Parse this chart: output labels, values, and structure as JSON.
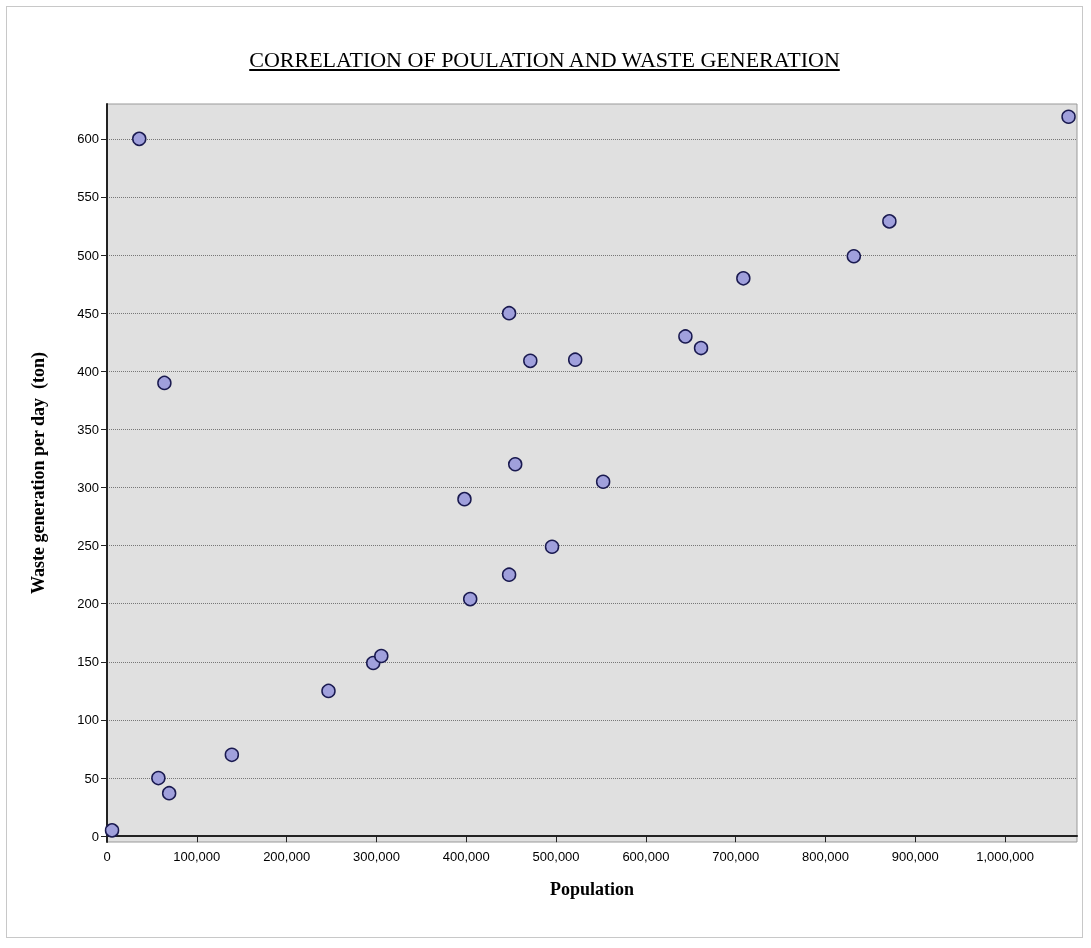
{
  "chart_data": {
    "type": "scatter",
    "title": "CORRELATION OF POULATION AND WASTE GENERATION",
    "xlabel": "Population",
    "ylabel": "Waste generation per day  (ton)",
    "x": [
      5600,
      35900,
      57200,
      63900,
      69200,
      139000,
      246600,
      296400,
      305400,
      398000,
      404400,
      447700,
      447700,
      454500,
      471300,
      495500,
      521300,
      552400,
      644000,
      661400,
      708500,
      831500,
      871100,
      1070600
    ],
    "values": [
      5,
      600,
      50,
      390,
      37,
      70,
      125,
      149,
      155,
      290,
      204,
      225,
      450,
      320,
      409,
      249,
      410,
      305,
      430,
      420,
      480,
      499,
      529,
      619
    ],
    "color": "#a0a0dc",
    "marker": "circle",
    "grid": "y",
    "xlim": [
      0,
      1080000
    ],
    "xticks": [
      0,
      {
        "value": 100000,
        "label": "100,000"
      },
      {
        "value": 200000,
        "label": "200,000"
      },
      {
        "value": 300000,
        "label": "300,000"
      },
      {
        "value": 400000,
        "label": "400,000"
      },
      {
        "value": 500000,
        "label": "500,000"
      },
      {
        "value": 600000,
        "label": "600,000"
      },
      {
        "value": 700000,
        "label": "700,000"
      },
      {
        "value": 800000,
        "label": "800,000"
      },
      {
        "value": 900000,
        "label": "900,000"
      },
      {
        "value": 1000000,
        "label": "1,000,000"
      }
    ],
    "ylim": [
      -5,
      630
    ],
    "yticks": [
      0,
      50,
      100,
      150,
      200,
      250,
      300,
      350,
      400,
      450,
      500,
      550,
      600
    ]
  }
}
